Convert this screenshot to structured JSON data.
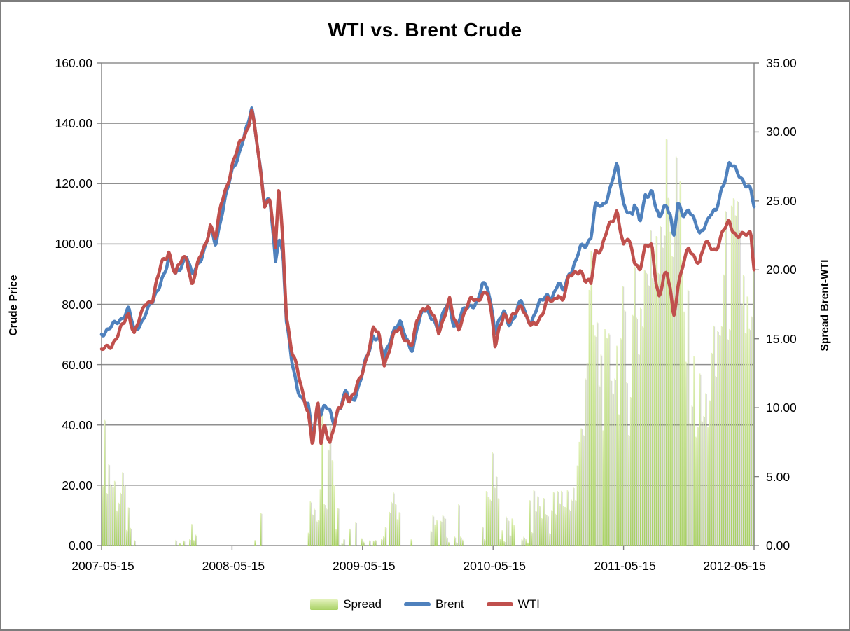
{
  "title": "WTI vs. Brent Crude",
  "axes": {
    "left": {
      "title": "Crude Price",
      "ticks": [
        "160.00",
        "140.00",
        "120.00",
        "100.00",
        "80.00",
        "60.00",
        "40.00",
        "20.00",
        "0.00"
      ]
    },
    "right": {
      "title": "Spread Brent-WTI",
      "ticks": [
        "35.00",
        "30.00",
        "25.00",
        "20.00",
        "15.00",
        "10.00",
        "5.00",
        "0.00"
      ]
    },
    "x": {
      "labels": [
        "2007-05-15",
        "2008-05-15",
        "2009-05-15",
        "2010-05-15",
        "2011-05-15",
        "2012-05-15"
      ]
    }
  },
  "legend": [
    {
      "label": "Spread",
      "type": "bar"
    },
    {
      "label": "Brent",
      "type": "line"
    },
    {
      "label": "WTI",
      "type": "line"
    }
  ],
  "colors": {
    "brent": "#4F81BD",
    "wti": "#C0504D",
    "spread_light": "#E4F2BD",
    "spread_mid": "#CCE795",
    "spread_dark": "#A8D163",
    "grid": "#8F8F8F",
    "axis": "#808080",
    "frame": "#7D7D7D",
    "text": "#000000"
  },
  "chart_data": {
    "type": "combo",
    "title": "WTI vs. Brent Crude",
    "x_unit": "months since 2007-05-15",
    "x_range": [
      0,
      60
    ],
    "x_tick_months": [
      0,
      12,
      24,
      36,
      48,
      60
    ],
    "x_tick_labels": [
      "2007-05-15",
      "2008-05-15",
      "2009-05-15",
      "2010-05-15",
      "2011-05-15",
      "2012-05-15"
    ],
    "left_axis": {
      "label": "Crude Price",
      "ylim": [
        0,
        160
      ],
      "step": 20
    },
    "right_axis": {
      "label": "Spread Brent-WTI",
      "ylim": [
        0,
        35
      ],
      "step": 5
    },
    "grid": "horizontal",
    "legend_position": "bottom",
    "anchors_format": [
      "t_months",
      "WTI",
      "Brent"
    ],
    "anchors": [
      [
        0,
        63.5,
        70.5
      ],
      [
        0.5,
        65.5,
        71
      ],
      [
        1,
        67.5,
        71.5
      ],
      [
        1.6,
        70.5,
        74
      ],
      [
        2,
        73.5,
        76.5
      ],
      [
        2.5,
        78,
        78.5
      ],
      [
        3,
        71.5,
        70.5
      ],
      [
        3.7,
        76.5,
        75.5
      ],
      [
        4,
        80,
        78
      ],
      [
        4.7,
        82,
        80.5
      ],
      [
        5,
        86,
        83.5
      ],
      [
        5.5,
        92,
        89
      ],
      [
        6,
        95.5,
        92.5
      ],
      [
        6.2,
        97.5,
        94.5
      ],
      [
        6.8,
        89.5,
        89
      ],
      [
        7,
        91.5,
        91
      ],
      [
        7.8,
        96.5,
        95.5
      ],
      [
        8.3,
        87.5,
        88.5
      ],
      [
        9,
        95,
        95
      ],
      [
        9.6,
        101,
        100
      ],
      [
        10,
        107.5,
        105
      ],
      [
        10.5,
        101.5,
        100.5
      ],
      [
        11,
        112.5,
        110.5
      ],
      [
        12,
        125.5,
        123.5
      ],
      [
        12.7,
        132,
        131
      ],
      [
        13,
        134.5,
        134.5
      ],
      [
        13.5,
        139.5,
        138.5
      ],
      [
        13.8,
        145.3,
        144
      ],
      [
        14.3,
        133,
        134
      ],
      [
        14.6,
        124,
        125.5
      ],
      [
        15,
        114,
        112.5
      ],
      [
        15.5,
        116.5,
        114
      ],
      [
        16,
        98,
        95
      ],
      [
        16.3,
        119.5,
        104
      ],
      [
        16.7,
        100,
        97
      ],
      [
        17,
        77,
        74
      ],
      [
        17.5,
        64,
        61.5
      ],
      [
        18,
        57,
        53.5
      ],
      [
        18.5,
        50,
        48
      ],
      [
        19,
        44.5,
        45.5
      ],
      [
        19.4,
        32.5,
        35.5
      ],
      [
        19.7,
        41,
        42
      ],
      [
        19.9,
        46.5,
        47
      ],
      [
        20.2,
        33.5,
        43
      ],
      [
        20.5,
        41.5,
        45
      ],
      [
        21,
        34.5,
        43.5
      ],
      [
        21.4,
        39.5,
        41
      ],
      [
        21.8,
        45.5,
        46.5
      ],
      [
        22,
        47,
        46.5
      ],
      [
        22.5,
        52,
        51
      ],
      [
        22.8,
        48,
        48.5
      ],
      [
        23.3,
        50,
        50.5
      ],
      [
        24,
        58,
        57.5
      ],
      [
        24.7,
        66,
        65.5
      ],
      [
        25,
        70.5,
        70
      ],
      [
        25.5,
        69.5,
        69
      ],
      [
        26,
        60.5,
        60.5
      ],
      [
        26.4,
        64,
        65.5
      ],
      [
        27,
        70.5,
        73
      ],
      [
        27.5,
        73,
        73.5
      ],
      [
        28,
        69,
        67.5
      ],
      [
        28.6,
        66,
        65.5
      ],
      [
        29,
        75,
        73.5
      ],
      [
        29.6,
        80,
        78
      ],
      [
        30,
        78.5,
        77.5
      ],
      [
        30.5,
        75,
        76.5
      ],
      [
        31,
        70.5,
        71.5
      ],
      [
        31.6,
        77,
        78
      ],
      [
        32,
        80.5,
        80
      ],
      [
        32.4,
        74,
        73
      ],
      [
        32.8,
        72,
        73.5
      ],
      [
        33.5,
        79.5,
        78
      ],
      [
        34,
        81.5,
        80
      ],
      [
        34.6,
        82,
        81
      ],
      [
        35,
        85,
        86
      ],
      [
        35.5,
        84,
        86.5
      ],
      [
        36,
        72,
        77.5
      ],
      [
        36.2,
        65.5,
        71.5
      ],
      [
        36.6,
        73.5,
        75
      ],
      [
        37,
        76.5,
        77
      ],
      [
        37.5,
        72.5,
        74
      ],
      [
        38,
        76.5,
        76.5
      ],
      [
        38.6,
        80.5,
        80
      ],
      [
        39,
        75.5,
        75.5
      ],
      [
        39.5,
        72,
        74
      ],
      [
        40,
        75,
        78
      ],
      [
        40.6,
        78.5,
        81
      ],
      [
        41,
        81.5,
        83.5
      ],
      [
        41.5,
        81,
        83.5
      ],
      [
        42,
        84.5,
        87
      ],
      [
        42.4,
        81.5,
        84.5
      ],
      [
        43,
        88,
        91.5
      ],
      [
        43.6,
        90.5,
        94
      ],
      [
        44,
        91.5,
        98
      ],
      [
        44.5,
        86.5,
        99.5
      ],
      [
        45,
        86,
        102.5
      ],
      [
        45.4,
        98,
        112
      ],
      [
        46,
        99,
        111
      ],
      [
        46.5,
        104.5,
        115.5
      ],
      [
        47,
        108.5,
        122
      ],
      [
        47.4,
        112.5,
        125.5
      ],
      [
        48,
        99.5,
        113.5
      ],
      [
        48.4,
        101.5,
        112.5
      ],
      [
        48.8,
        97.5,
        110.5
      ],
      [
        49,
        95,
        113.5
      ],
      [
        49.5,
        91.5,
        107
      ],
      [
        50,
        97.5,
        117
      ],
      [
        50.6,
        99,
        117.5
      ],
      [
        51,
        87.5,
        110.5
      ],
      [
        51.3,
        82,
        107
      ],
      [
        51.7,
        88.5,
        112.5
      ],
      [
        52,
        89,
        112.5
      ],
      [
        52.3,
        85.5,
        110
      ],
      [
        52.6,
        76.5,
        100.5
      ],
      [
        53,
        87,
        112
      ],
      [
        53.5,
        93.5,
        110
      ],
      [
        54,
        99,
        112.5
      ],
      [
        54.5,
        97,
        107.5
      ],
      [
        55,
        94,
        103.5
      ],
      [
        55.5,
        99.5,
        108
      ],
      [
        56,
        99,
        110.5
      ],
      [
        56.5,
        98,
        110
      ],
      [
        57,
        101.5,
        118
      ],
      [
        57.7,
        107,
        126.5
      ],
      [
        58,
        105.5,
        125
      ],
      [
        58.4,
        103,
        122.5
      ],
      [
        59,
        102.5,
        121
      ],
      [
        59.4,
        103.5,
        119.5
      ],
      [
        59.7,
        105,
        117.5
      ],
      [
        60,
        93.5,
        111.5
      ]
    ],
    "series": [
      {
        "name": "Spread",
        "type": "bar",
        "axis": "right",
        "color": "#A8D163",
        "note": "daily bars = max(0, Brent - WTI), peaks ~30 in Sep-Oct 2011"
      },
      {
        "name": "Brent",
        "type": "line",
        "axis": "left",
        "color": "#4F81BD",
        "points_from": "anchors"
      },
      {
        "name": "WTI",
        "type": "line",
        "axis": "left",
        "color": "#C0504D",
        "points_from": "anchors"
      }
    ]
  }
}
